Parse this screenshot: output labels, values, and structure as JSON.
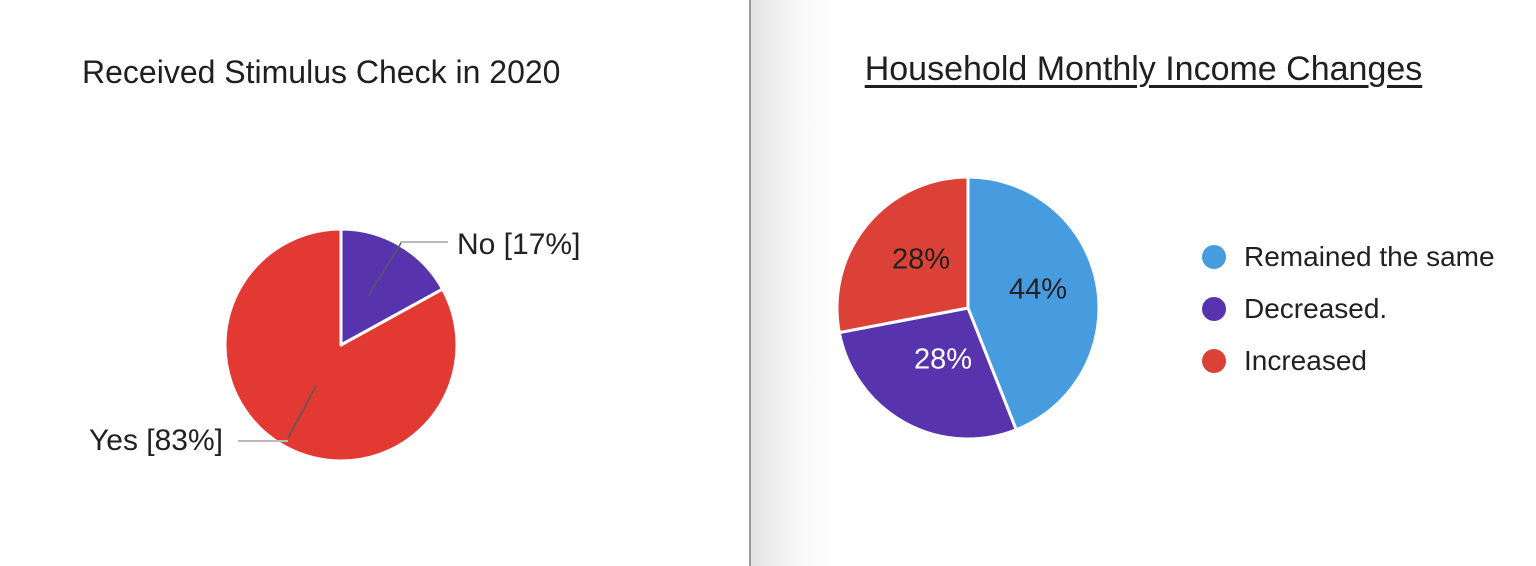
{
  "page": {
    "background_color": "#ffffff",
    "divider": {
      "line_color": "#9a9a9a",
      "shadow_color": "#e2e2e2"
    },
    "text_color": "#212121"
  },
  "chart_data": [
    {
      "type": "pie",
      "title": "Received Stimulus Check in 2020",
      "title_underlined": false,
      "categories": [
        "No",
        "Yes"
      ],
      "values": [
        17,
        83
      ],
      "colors": [
        "#5733ae",
        "#e23933"
      ],
      "callout_labels": [
        "No [17%]",
        "Yes [83%]"
      ],
      "slice_border_color": "#ffffff",
      "start_angle_deg": 0,
      "direction": "clockwise",
      "legend_position": "none"
    },
    {
      "type": "pie",
      "title": "Household Monthly Income Changes",
      "title_underlined": true,
      "categories": [
        "Remained the same",
        "Decreased.",
        "Increased"
      ],
      "values": [
        44,
        28,
        28
      ],
      "colors": [
        "#479ce0",
        "#5733ae",
        "#dc4137"
      ],
      "slice_labels": [
        "44%",
        "28%",
        "28%"
      ],
      "slice_label_colors": [
        "#212121",
        "#ffffff",
        "#212121"
      ],
      "slice_border_color": "#ffffff",
      "start_angle_deg": 0,
      "direction": "clockwise",
      "legend_position": "right",
      "legend": [
        {
          "label": "Remained the same",
          "color": "#479ce0"
        },
        {
          "label": "Decreased.",
          "color": "#5733ae"
        },
        {
          "label": "Increased",
          "color": "#dc4137"
        }
      ]
    }
  ]
}
